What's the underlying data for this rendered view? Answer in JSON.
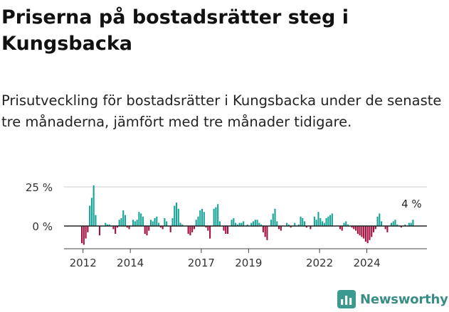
{
  "title": "Priserna på bostadsrätter steg i Kungsbacka",
  "subtitle": "Prisutveckling för bostadsrätter i Kungsbacka under de senaste tre månaderna, jämfört med tre månader tidigare.",
  "branding": {
    "logo_text": "Newsworthy",
    "logo_icon": "bar-chart-icon",
    "color": "#3a9990"
  },
  "colors": {
    "positive": "#17a398",
    "negative": "#a3103e",
    "baseline": "#222222",
    "grid": "#cccccc"
  },
  "chart_data": {
    "type": "bar",
    "ylabel": "",
    "xlabel": "",
    "y_ticks": [
      0,
      25
    ],
    "y_tick_labels": [
      "0 %",
      "25 %"
    ],
    "ylim": [
      -13,
      27
    ],
    "x_tick_labels": [
      "2012",
      "2014",
      "2017",
      "2019",
      "2022",
      "2024"
    ],
    "x_ticks": [
      2012,
      2014,
      2017,
      2019,
      2022,
      2024
    ],
    "x_start": 2011.92,
    "x_step": 0.0833,
    "grid": true,
    "annotation": {
      "text": "4 %",
      "value": 4
    },
    "values": [
      -11,
      -12,
      -8,
      -4,
      13,
      18,
      26,
      7,
      0,
      -6,
      0,
      0,
      2,
      1,
      1,
      0,
      -2,
      -5,
      -1,
      4,
      5,
      10,
      7,
      -1,
      -2,
      0,
      4,
      3,
      4,
      9,
      8,
      6,
      -5,
      -6,
      -3,
      4,
      3,
      5,
      6,
      2,
      -1,
      -2,
      5,
      3,
      0,
      -4,
      5,
      13,
      15,
      11,
      2,
      1,
      0,
      0,
      -5,
      -6,
      -4,
      -2,
      4,
      6,
      10,
      11,
      9,
      -1,
      -3,
      -8,
      0,
      11,
      12,
      14,
      3,
      0,
      -3,
      -5,
      -5,
      0,
      4,
      5,
      2,
      1,
      2,
      2,
      3,
      0,
      1,
      0,
      2,
      3,
      4,
      4,
      2,
      1,
      -4,
      -7,
      -9,
      0,
      4,
      8,
      11,
      3,
      -2,
      -3,
      0,
      0,
      2,
      1,
      -1,
      0,
      2,
      0,
      1,
      6,
      5,
      3,
      -1,
      0,
      -2,
      0,
      6,
      4,
      9,
      5,
      3,
      2,
      5,
      6,
      7,
      8,
      0,
      0,
      0,
      -2,
      -3,
      2,
      3,
      1,
      0,
      -1,
      -2,
      -3,
      -5,
      -6,
      -7,
      -8,
      -10,
      -11,
      -9,
      -7,
      -4,
      -2,
      6,
      8,
      3,
      0,
      -2,
      -4,
      0,
      2,
      3,
      4,
      1,
      0,
      -1,
      0,
      1,
      0,
      2,
      2,
      4
    ]
  }
}
